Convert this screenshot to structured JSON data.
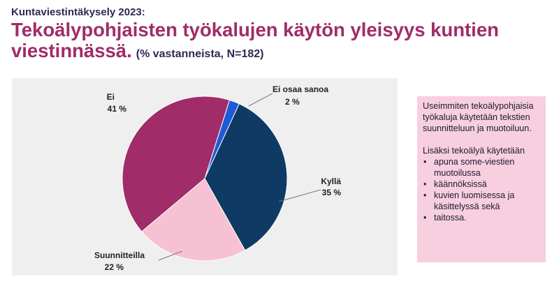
{
  "header": {
    "kicker": "Kuntaviestintäkysely 2023:",
    "title": "Tekoälypohjaisten työkalujen käytön yleisyys kuntien viestinnässä.",
    "subtitle": "(% vastanneista, N=182)"
  },
  "colors": {
    "kylla": "#0e3a63",
    "suunnitteilla": "#f6c1d3",
    "ei": "#a02c6a",
    "ei_osaa_sanoa": "#1d5bd6",
    "panel_background": "#efefef",
    "info_background": "#f7cfdf"
  },
  "chart_data": {
    "type": "pie",
    "title": "Tekoälypohjaisten työkalujen käytön yleisyys kuntien viestinnässä.",
    "unit": "%",
    "slices": [
      {
        "label": "Ei osaa sanoa",
        "value": 2,
        "value_label": "2 %",
        "color": "#1d5bd6"
      },
      {
        "label": "Kyllä",
        "value": 35,
        "value_label": "35 %",
        "color": "#0e3a63"
      },
      {
        "label": "Suunnitteilla",
        "value": 22,
        "value_label": "22 %",
        "color": "#f6c1d3"
      },
      {
        "label": "Ei",
        "value": 41,
        "value_label": "41 %",
        "color": "#a02c6a"
      }
    ]
  },
  "info": {
    "paragraph1": "Useimmiten tekoälypohjaisia työkaluja käytetään tekstien suunnitteluun ja muotoiluun.",
    "paragraph2": "Lisäksi tekoälyä käytetään",
    "bullets": [
      "apuna some-viestien muotoilussa",
      "käännöksissä",
      "kuvien luomisessa ja käsittelyssä sekä",
      "taitossa."
    ]
  }
}
